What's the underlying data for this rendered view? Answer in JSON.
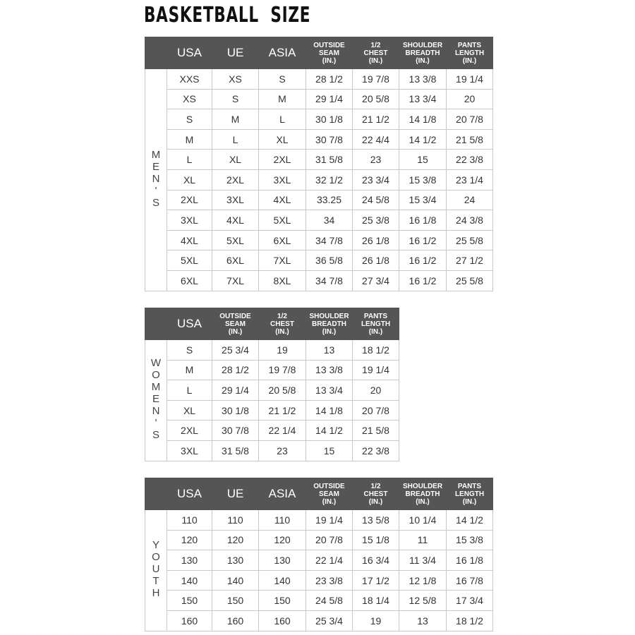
{
  "title": "BASKETBALL  SIZE",
  "colors": {
    "header_bg": "#555555",
    "border": "#c8c8c8"
  },
  "tables": [
    {
      "id": "mens",
      "side_label": "MEN'S",
      "columns": [
        "USA",
        "UE",
        "ASIA",
        "OUTSIDE\nSEAM\n(IN.)",
        "1/2\nCHEST\n(IN.)",
        "SHOULDER\nBREADTH\n(IN.)",
        "PANTS\nLENGTH\n(IN.)"
      ],
      "rows": [
        [
          "XXS",
          "XS",
          "S",
          "28 1/2",
          "19 7/8",
          "13 3/8",
          "19 1/4"
        ],
        [
          "XS",
          "S",
          "M",
          "29 1/4",
          "20 5/8",
          "13 3/4",
          "20"
        ],
        [
          "S",
          "M",
          "L",
          "30 1/8",
          "21 1/2",
          "14 1/8",
          "20 7/8"
        ],
        [
          "M",
          "L",
          "XL",
          "30 7/8",
          "22 4/4",
          "14 1/2",
          "21 5/8"
        ],
        [
          "L",
          "XL",
          "2XL",
          "31 5/8",
          "23",
          "15",
          "22 3/8"
        ],
        [
          "XL",
          "2XL",
          "3XL",
          "32 1/2",
          "23 3/4",
          "15 3/8",
          "23 1/4"
        ],
        [
          "2XL",
          "3XL",
          "4XL",
          "33.25",
          "24 5/8",
          "15 3/4",
          "24"
        ],
        [
          "3XL",
          "4XL",
          "5XL",
          "34",
          "25 3/8",
          "16 1/8",
          "24 3/8"
        ],
        [
          "4XL",
          "5XL",
          "6XL",
          "34 7/8",
          "26 1/8",
          "16 1/2",
          "25 5/8"
        ],
        [
          "5XL",
          "6XL",
          "7XL",
          "36 5/8",
          "26 1/8",
          "16 1/2",
          "27 1/2"
        ],
        [
          "6XL",
          "7XL",
          "8XL",
          "34 7/8",
          "27 3/4",
          "16 1/2",
          "25 5/8"
        ]
      ]
    },
    {
      "id": "womens",
      "side_label": "WOMEN'S",
      "columns": [
        "USA",
        "OUTSIDE\nSEAM\n(IN.)",
        "1/2\nCHEST\n(IN.)",
        "SHOULDER\nBREADTH\n(IN.)",
        "PANTS\nLENGTH\n(IN.)"
      ],
      "rows": [
        [
          "S",
          "25 3/4",
          "19",
          "13",
          "18 1/2"
        ],
        [
          "M",
          "28 1/2",
          "19 7/8",
          "13 3/8",
          "19 1/4"
        ],
        [
          "L",
          "29 1/4",
          "20 5/8",
          "13 3/4",
          "20"
        ],
        [
          "XL",
          "30 1/8",
          "21 1/2",
          "14 1/8",
          "20 7/8"
        ],
        [
          "2XL",
          "30 7/8",
          "22 1/4",
          "14 1/2",
          "21 5/8"
        ],
        [
          "3XL",
          "31 5/8",
          "23",
          "15",
          "22 3/8"
        ]
      ]
    },
    {
      "id": "youth",
      "side_label": "YOUTH",
      "columns": [
        "USA",
        "UE",
        "ASIA",
        "OUTSIDE\nSEAM\n(IN.)",
        "1/2\nCHEST\n(IN.)",
        "SHOULDER\nBREADTH\n(IN.)",
        "PANTS\nLENGTH\n(IN.)"
      ],
      "rows": [
        [
          "110",
          "110",
          "110",
          "19 1/4",
          "13 5/8",
          "10 1/4",
          "14 1/2"
        ],
        [
          "120",
          "120",
          "120",
          "20 7/8",
          "15 1/8",
          "11",
          "15 3/8"
        ],
        [
          "130",
          "130",
          "130",
          "22 1/4",
          "16 3/4",
          "11 3/4",
          "16 1/8"
        ],
        [
          "140",
          "140",
          "140",
          "23 3/8",
          "17 1/2",
          "12 1/8",
          "16 7/8"
        ],
        [
          "150",
          "150",
          "150",
          "24 5/8",
          "18 1/4",
          "12 5/8",
          "17 3/4"
        ],
        [
          "160",
          "160",
          "160",
          "25 3/4",
          "19",
          "13",
          "18 1/2"
        ]
      ]
    }
  ]
}
